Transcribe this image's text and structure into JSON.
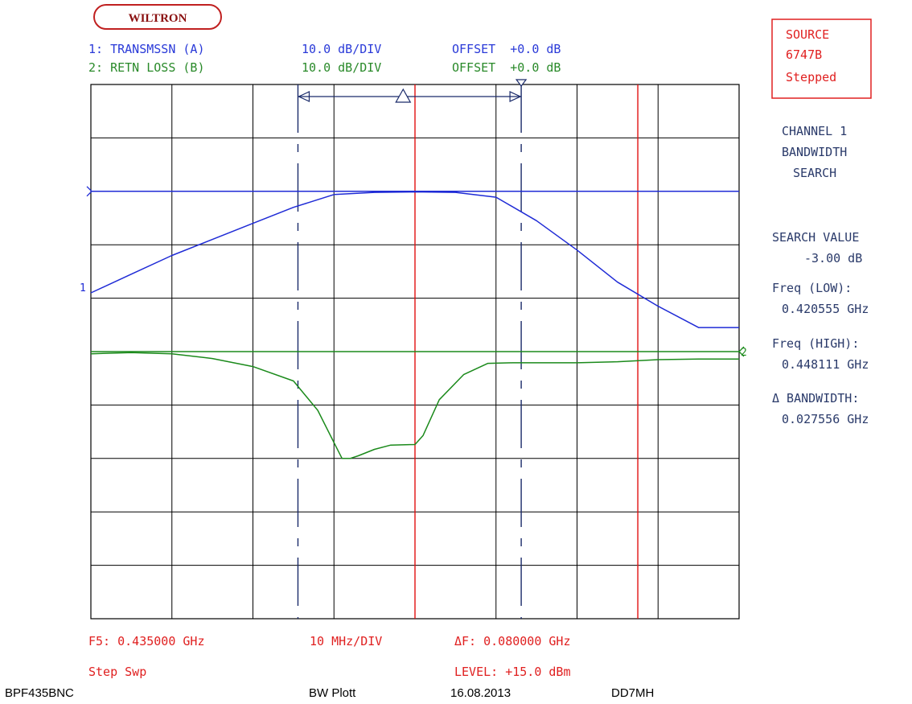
{
  "logo": {
    "text": "WILTRON"
  },
  "header": {
    "trace1": {
      "label": "1: TRANSMSSN (A)",
      "scale": "10.0 dB/DIV",
      "offset": "OFFSET  +0.0 dB"
    },
    "trace2": {
      "label": "2: RETN LOSS (B)",
      "scale": "10.0 dB/DIV",
      "offset": "OFFSET  +0.0 dB"
    }
  },
  "source_box": {
    "line1": "SOURCE",
    "line2": "6747B",
    "line3": "Stepped"
  },
  "sidebar": {
    "mode1": "CHANNEL 1",
    "mode2": "BANDWIDTH",
    "mode3": "SEARCH",
    "search_label": "SEARCH VALUE",
    "search_value": "-3.00 dB",
    "freq_low_label": "Freq (LOW):",
    "freq_low_value": "0.420555 GHz",
    "freq_high_label": "Freq (HIGH):",
    "freq_high_value": "0.448111 GHz",
    "bandwidth_label": "Δ BANDWIDTH:",
    "bandwidth_value": "0.027556 GHz"
  },
  "bottom": {
    "center_freq": "F5: 0.435000 GHz",
    "freq_div": "10 MHz/DIV",
    "span": "ΔF: 0.080000 GHz",
    "sweep": "Step Swp",
    "level": "LEVEL: +15.0 dBm"
  },
  "footer": {
    "left": "BPF435BNC",
    "center": "BW Plott",
    "date": "16.08.2013",
    "call": "DD7MH"
  },
  "colors": {
    "trace1": "#1f2bd6",
    "trace2": "#1b8a1b",
    "marker": "#e01010",
    "search_cursor": "#1a2a6a",
    "grid": "#000000",
    "header1": "#2a3ad8",
    "header2": "#2a8a2a",
    "text_red": "#e02020",
    "sidebar_text": "#2a3a6a"
  },
  "chart_data": {
    "type": "line",
    "title": "",
    "xlabel": "",
    "ylabel": "",
    "x_center_ghz": 0.435,
    "x_per_div_ghz": 0.01,
    "xlim": [
      0.395,
      0.475
    ],
    "divisions_x": 8,
    "divisions_y": 10,
    "markers_ghz": [
      0.435,
      0.4625
    ],
    "search_cursors_ghz": [
      0.420555,
      0.448111
    ],
    "series": [
      {
        "name": "1: TRANSMSSN (A)",
        "y_per_div_db": 10,
        "ref_div_from_top": 2,
        "x": [
          0.395,
          0.4,
          0.405,
          0.41,
          0.415,
          0.42,
          0.425,
          0.43,
          0.435,
          0.44,
          0.445,
          0.45,
          0.455,
          0.46,
          0.465,
          0.47,
          0.475
        ],
        "y": [
          -19,
          -15.5,
          -12,
          -9,
          -6,
          -3,
          -0.6,
          -0.2,
          -0.1,
          -0.2,
          -1.1,
          -5.5,
          -11,
          -17,
          -21.5,
          -25.5,
          -25.5
        ]
      },
      {
        "name": "2: RETN LOSS (B)",
        "y_per_div_db": 10,
        "ref_div_from_top": 5,
        "x": [
          0.395,
          0.4,
          0.405,
          0.41,
          0.415,
          0.42,
          0.423,
          0.425,
          0.426,
          0.427,
          0.428,
          0.43,
          0.432,
          0.435,
          0.436,
          0.438,
          0.441,
          0.444,
          0.447,
          0.45,
          0.455,
          0.46,
          0.465,
          0.47,
          0.475
        ],
        "y": [
          -0.4,
          -0.2,
          -0.4,
          -1.3,
          -2.8,
          -5.5,
          -11,
          -17,
          -20,
          -20,
          -19.5,
          -18.3,
          -17.5,
          -17.4,
          -15.7,
          -9,
          -4.3,
          -2.2,
          -2.1,
          -2.1,
          -2.1,
          -1.9,
          -1.5,
          -1.4,
          -1.4
        ]
      }
    ]
  }
}
